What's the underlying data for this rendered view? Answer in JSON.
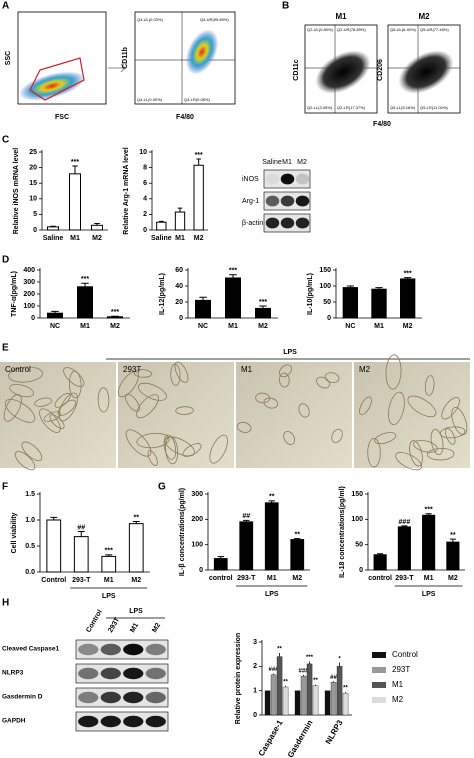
{
  "panel_labels": [
    "A",
    "B",
    "C",
    "D",
    "E",
    "F",
    "G",
    "H"
  ],
  "flow": {
    "a_axes": [
      "SSC",
      "FSC",
      "CD11b",
      "F4/80"
    ],
    "a_quadrants": [
      "Q4-UL(0.03%)",
      "Q4-UR(99.89%)",
      "Q4-LL(0.00%)",
      "Q4-LR(0.08%)"
    ],
    "b_titles": [
      "M1",
      "M2"
    ],
    "b_axes": [
      "CD11c",
      "CD206",
      "F4/80"
    ],
    "b_m1_quadrants": [
      "Q2-UL(0.89%)",
      "Q2-UR(78.89%)",
      "Q2-LL(3.05%)",
      "Q2-LR(17.37%)"
    ],
    "b_m2_quadrants": [
      "Q5-UL(6.40%)",
      "Q5-UR(77.45%)",
      "Q5-LL(5.16%)",
      "Q5-LR(11.00%)"
    ]
  },
  "blot_c": {
    "lanes": [
      "Saline",
      "M1",
      "M2"
    ],
    "rows": [
      "iNOS",
      "Arg-1",
      "β-actin"
    ]
  },
  "micrographs": {
    "labels": [
      "Control",
      "293T",
      "M1",
      "M2"
    ],
    "group": "LPS"
  },
  "blot_h": {
    "lanes": [
      "Control",
      "293T",
      "M1",
      "M2"
    ],
    "group": "LPS",
    "rows": [
      "Cleaved Caspase1",
      "NLRP3",
      "Gasdermin D",
      "GAPDH"
    ]
  },
  "chart_data": [
    {
      "type": "bar",
      "ylabel": "Relative iNOS mRNA level",
      "categories": [
        "Saline",
        "M1",
        "M2"
      ],
      "values": [
        1,
        18,
        1.5
      ],
      "errors": [
        0.2,
        2.5,
        0.6
      ],
      "annotations": [
        null,
        "***",
        null
      ],
      "color": "#ffffff",
      "ylim": [
        0,
        25
      ],
      "yticks": [
        0,
        5,
        10,
        15,
        20,
        25
      ]
    },
    {
      "type": "bar",
      "ylabel": "Relative  Arg-1 mRNA level",
      "categories": [
        "Saline",
        "M1",
        "M2"
      ],
      "values": [
        1,
        2.3,
        8.3
      ],
      "errors": [
        0.1,
        0.5,
        0.8
      ],
      "annotations": [
        null,
        null,
        "***"
      ],
      "color": "#ffffff",
      "ylim": [
        0,
        10
      ],
      "yticks": [
        0,
        2,
        4,
        6,
        8,
        10
      ]
    },
    {
      "type": "bar",
      "ylabel": "TNF-α(pg/mL)",
      "categories": [
        "NC",
        "M1",
        "M2"
      ],
      "values": [
        40,
        260,
        10
      ],
      "errors": [
        15,
        30,
        5
      ],
      "annotations": [
        null,
        "***",
        "***"
      ],
      "color": "#000000",
      "ylim": [
        0,
        400
      ],
      "yticks": [
        0,
        100,
        200,
        300,
        400
      ]
    },
    {
      "type": "bar",
      "ylabel": "IL-12(pg/mL)",
      "categories": [
        "NC",
        "M1",
        "M2"
      ],
      "values": [
        22,
        50,
        12
      ],
      "errors": [
        4,
        4,
        3
      ],
      "annotations": [
        null,
        "***",
        "***"
      ],
      "color": "#000000",
      "ylim": [
        0,
        60
      ],
      "yticks": [
        0,
        20,
        40,
        60
      ]
    },
    {
      "type": "bar",
      "ylabel": "IL-10(pg/mL)",
      "categories": [
        "NC",
        "M1",
        "M2"
      ],
      "values": [
        95,
        90,
        122
      ],
      "errors": [
        5,
        5,
        4
      ],
      "annotations": [
        null,
        null,
        "***"
      ],
      "color": "#000000",
      "ylim": [
        0,
        150
      ],
      "yticks": [
        0,
        50,
        100,
        150
      ]
    },
    {
      "type": "bar",
      "ylabel": "Cell viability",
      "categories": [
        "Control",
        "293-T",
        "M1",
        "M2"
      ],
      "values": [
        1.0,
        0.68,
        0.3,
        0.93
      ],
      "errors": [
        0.05,
        0.1,
        0.03,
        0.04
      ],
      "annotations": [
        null,
        "##",
        "***",
        "**"
      ],
      "group_label": "LPS",
      "color": "#ffffff",
      "ylim": [
        0,
        1.5
      ],
      "yticks": [
        {
          "value": 0,
          "label": "0.0"
        },
        {
          "value": 0.5,
          "label": "0.5"
        },
        {
          "value": 1,
          "label": "1.0"
        },
        {
          "value": 1.5,
          "label": "1.5"
        }
      ]
    },
    {
      "type": "bar",
      "ylabel": "IL-β concentrations(pg/ml)",
      "categories": [
        "control",
        "293-T",
        "M1",
        "M2"
      ],
      "values": [
        45,
        190,
        265,
        120
      ],
      "errors": [
        8,
        6,
        8,
        4
      ],
      "annotations": [
        null,
        "##",
        "**",
        "**"
      ],
      "group_label": "LPS",
      "color": "#000000",
      "ylim": [
        0,
        300
      ],
      "yticks": [
        0,
        100,
        200,
        300
      ]
    },
    {
      "type": "bar",
      "ylabel": "IL-18 concentrations(pg/ml)",
      "categories": [
        "control",
        "293-T",
        "M1",
        "M2"
      ],
      "values": [
        30,
        85,
        108,
        55
      ],
      "errors": [
        2,
        2,
        3,
        6
      ],
      "annotations": [
        null,
        "###",
        "***",
        "**"
      ],
      "group_label": "LPS",
      "color": "#000000",
      "ylim": [
        0,
        150
      ],
      "yticks": [
        0,
        50,
        100,
        150
      ]
    },
    {
      "type": "grouped_bar",
      "ylabel": "Relative protein expression",
      "categories": [
        "Caspase-1",
        "Gasdermin",
        "NLRP3"
      ],
      "series": [
        {
          "name": "Control",
          "color": "#111111",
          "values": [
            1,
            1,
            1
          ],
          "errors": [
            0,
            0,
            0
          ],
          "annotations": [
            null,
            null,
            null
          ]
        },
        {
          "name": "293T",
          "color": "#9a9a9a",
          "values": [
            1.65,
            1.6,
            1.35
          ],
          "errors": [
            0.05,
            0.05,
            0.04
          ],
          "annotations": [
            "###",
            "###",
            "##"
          ]
        },
        {
          "name": "M1",
          "color": "#555555",
          "values": [
            2.4,
            2.1,
            2.0
          ],
          "errors": [
            0.15,
            0.1,
            0.15
          ],
          "annotations": [
            "**",
            "***",
            "*"
          ]
        },
        {
          "name": "M2",
          "color": "#dcdcdc",
          "values": [
            1.15,
            1.2,
            0.9
          ],
          "errors": [
            0.05,
            0.05,
            0.04
          ],
          "annotations": [
            "**",
            "**",
            "**"
          ]
        }
      ],
      "ylim": [
        0,
        3
      ],
      "yticks": [
        0,
        1,
        2,
        3
      ]
    }
  ]
}
